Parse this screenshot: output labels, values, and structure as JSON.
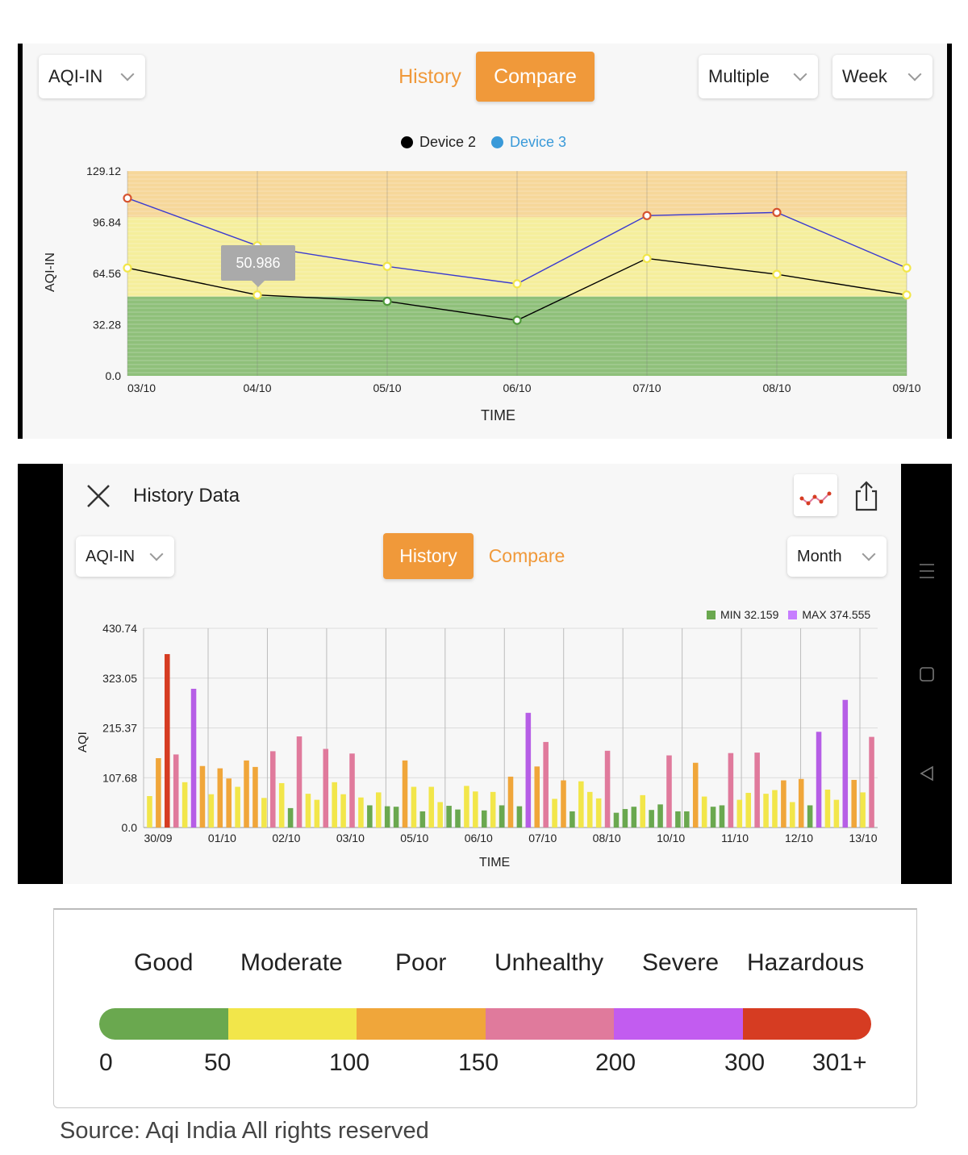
{
  "panel1": {
    "pollutant_dropdown": "AQI-IN",
    "tabs": [
      {
        "label": "History",
        "active": false
      },
      {
        "label": "Compare",
        "active": true
      }
    ],
    "mode_dropdown": "Multiple",
    "period_dropdown": "Week",
    "legend": [
      {
        "label": "Device 2",
        "color": "#000000"
      },
      {
        "label": "Device 3",
        "color": "#3a9ad9"
      }
    ],
    "tooltip": "50.986",
    "chart_data": {
      "type": "line",
      "ylabel": "AQI-IN",
      "xlabel": "TIME",
      "x": [
        "03/10",
        "04/10",
        "05/10",
        "06/10",
        "07/10",
        "08/10",
        "09/10"
      ],
      "y_ticks": [
        "129.12",
        "96.84",
        "64.56",
        "32.28",
        "0.0"
      ],
      "ylim": [
        0,
        129.12
      ],
      "series": [
        {
          "name": "Device 2",
          "color": "#000000",
          "values": [
            68,
            50.986,
            47,
            35,
            74,
            64,
            51
          ]
        },
        {
          "name": "Device 3",
          "color": "#3a3ad0",
          "values": [
            112,
            82,
            69,
            58,
            101,
            103,
            68
          ]
        }
      ],
      "bands": [
        {
          "from": 0,
          "to": 50,
          "color": "#8fc07a"
        },
        {
          "from": 50,
          "to": 100,
          "color": "#f5ee9c"
        },
        {
          "from": 100,
          "to": 129.12,
          "color": "#f6d79a"
        }
      ],
      "grid": true
    }
  },
  "panel2": {
    "title": "History Data",
    "pollutant_dropdown": "AQI-IN",
    "tabs": [
      {
        "label": "History",
        "active": true
      },
      {
        "label": "Compare",
        "active": false
      }
    ],
    "period_dropdown": "Month",
    "stats": {
      "min": "MIN 32.159",
      "max": "MAX 374.555",
      "min_color": "#6aa84f",
      "max_color": "#c77dff"
    },
    "chart_data": {
      "type": "bar",
      "ylabel": "AQI",
      "xlabel": "TIME",
      "x_ticks": [
        "30/09",
        "01/10",
        "02/10",
        "03/10",
        "05/10",
        "06/10",
        "07/10",
        "08/10",
        "10/10",
        "11/10",
        "12/10",
        "13/10"
      ],
      "y_ticks": [
        "430.74",
        "323.05",
        "215.37",
        "107.68",
        "0.0"
      ],
      "ylim": [
        0,
        430.74
      ],
      "values": [
        68,
        150,
        375,
        158,
        98,
        300,
        133,
        72,
        128,
        106,
        88,
        145,
        131,
        64,
        165,
        96,
        42,
        197,
        73,
        60,
        170,
        98,
        72,
        160,
        65,
        48,
        76,
        46,
        45,
        145,
        88,
        35,
        88,
        55,
        47,
        39,
        90,
        78,
        37,
        77,
        48,
        110,
        46,
        248,
        132,
        185,
        62,
        102,
        35,
        100,
        77,
        63,
        166,
        32,
        40,
        45,
        70,
        38,
        50,
        156,
        35,
        35,
        140,
        67,
        45,
        48,
        161,
        60,
        75,
        162,
        73,
        81,
        102,
        55,
        105,
        48,
        207,
        82,
        60,
        276,
        103,
        76,
        196
      ],
      "value_colors": {
        "good": "#6aa84f",
        "moderate": "#f2e64a",
        "poor": "#f0a63a",
        "unhealthy": "#e07a9c",
        "severe": "#b65ee6",
        "hazardous": "#d63c22"
      }
    }
  },
  "scale": {
    "categories": [
      {
        "label": "Good",
        "color": "#6aa84f"
      },
      {
        "label": "Moderate",
        "color": "#f2e64a"
      },
      {
        "label": "Poor",
        "color": "#f0a63a"
      },
      {
        "label": "Unhealthy",
        "color": "#e07a9c"
      },
      {
        "label": "Severe",
        "color": "#c25cf0"
      },
      {
        "label": "Hazardous",
        "color": "#d63c22"
      }
    ],
    "values": [
      "0",
      "50",
      "100",
      "150",
      "200",
      "300",
      "301+"
    ]
  },
  "source": "Source: Aqi India All rights reserved"
}
